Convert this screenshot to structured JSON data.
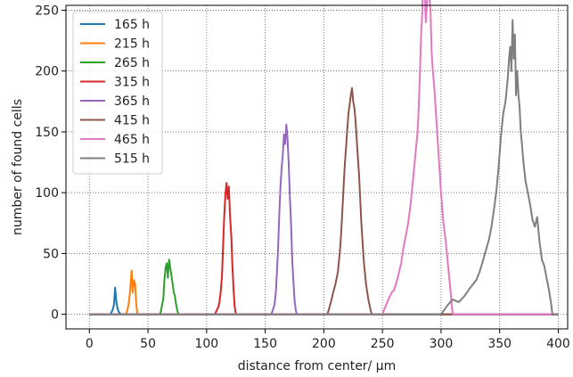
{
  "chart_data": {
    "type": "line",
    "title": "",
    "xlabel": "distance from center/ μm",
    "ylabel": "number of found cells",
    "xlim": [
      -20,
      408
    ],
    "ylim": [
      -12,
      254
    ],
    "xticks": [
      0,
      50,
      100,
      150,
      200,
      250,
      300,
      350,
      400
    ],
    "yticks": [
      0,
      50,
      100,
      150,
      200,
      250
    ],
    "grid": true,
    "legend_position": "top-left",
    "series": [
      {
        "name": "165 h",
        "color": "#1f77b4",
        "x": [
          0,
          18,
          19,
          20,
          21,
          22,
          23,
          24,
          25,
          26,
          27,
          400
        ],
        "y": [
          0,
          0,
          2,
          4,
          8,
          22,
          10,
          5,
          2,
          1,
          0,
          0
        ]
      },
      {
        "name": "215 h",
        "color": "#ff7f0e",
        "x": [
          0,
          31,
          32,
          33,
          34,
          35,
          36,
          37,
          38,
          39,
          40,
          41,
          400
        ],
        "y": [
          0,
          0,
          2,
          6,
          12,
          22,
          36,
          18,
          28,
          25,
          8,
          0,
          0
        ]
      },
      {
        "name": "265 h",
        "color": "#2ca02c",
        "x": [
          0,
          60,
          61,
          62,
          63,
          64,
          65,
          66,
          67,
          68,
          69,
          70,
          71,
          72,
          73,
          74,
          75,
          76,
          400
        ],
        "y": [
          0,
          0,
          2,
          8,
          12,
          28,
          38,
          42,
          30,
          45,
          38,
          32,
          25,
          18,
          15,
          8,
          3,
          0,
          0
        ]
      },
      {
        "name": "315 h",
        "color": "#d62728",
        "x": [
          0,
          107,
          108,
          109,
          110,
          111,
          112,
          113,
          114,
          115,
          116,
          117,
          118,
          119,
          120,
          121,
          122,
          123,
          124,
          125,
          400
        ],
        "y": [
          0,
          0,
          2,
          4,
          6,
          10,
          18,
          30,
          55,
          80,
          98,
          108,
          95,
          105,
          80,
          65,
          40,
          20,
          6,
          0,
          0
        ]
      },
      {
        "name": "365 h",
        "color": "#9467bd",
        "x": [
          0,
          155,
          156,
          158,
          159,
          160,
          161,
          162,
          163,
          164,
          165,
          166,
          167,
          168,
          169,
          170,
          171,
          172,
          173,
          174,
          175,
          176,
          177,
          400
        ],
        "y": [
          0,
          0,
          2,
          8,
          18,
          35,
          55,
          82,
          105,
          120,
          132,
          148,
          140,
          156,
          145,
          125,
          98,
          75,
          45,
          28,
          12,
          4,
          0,
          0
        ]
      },
      {
        "name": "415 h",
        "color": "#8c564b",
        "x": [
          0,
          203,
          204,
          206,
          208,
          210,
          212,
          214,
          215,
          216,
          217,
          218,
          219,
          220,
          221,
          222,
          223,
          224,
          225,
          226,
          227,
          228,
          229,
          230,
          231,
          232,
          233,
          234,
          236,
          238,
          240,
          241,
          400
        ],
        "y": [
          0,
          0,
          3,
          10,
          18,
          25,
          35,
          55,
          70,
          88,
          108,
          125,
          138,
          152,
          165,
          172,
          180,
          186,
          175,
          170,
          160,
          145,
          130,
          115,
          95,
          75,
          60,
          45,
          25,
          12,
          3,
          0,
          0
        ]
      },
      {
        "name": "465 h",
        "color": "#e377c2",
        "x": [
          0,
          250,
          252,
          255,
          258,
          260,
          263,
          266,
          268,
          270,
          272,
          274,
          276,
          278,
          280,
          281,
          282,
          283,
          284,
          285,
          286,
          287,
          288,
          289,
          290,
          291,
          292,
          293,
          294,
          295,
          296,
          298,
          300,
          302,
          304,
          306,
          308,
          309,
          310,
          400
        ],
        "y": [
          0,
          0,
          5,
          12,
          18,
          20,
          30,
          42,
          55,
          65,
          75,
          90,
          110,
          130,
          150,
          170,
          200,
          230,
          250,
          285,
          270,
          240,
          255,
          280,
          260,
          250,
          215,
          200,
          190,
          175,
          160,
          130,
          100,
          75,
          60,
          40,
          20,
          8,
          0,
          0
        ]
      },
      {
        "name": "515 h",
        "color": "#7f7f7f",
        "x": [
          0,
          300,
          303,
          306,
          310,
          315,
          320,
          325,
          330,
          333,
          336,
          339,
          341,
          343,
          345,
          347,
          349,
          351,
          353,
          355,
          357,
          358,
          359,
          360,
          361,
          362,
          363,
          364,
          365,
          366,
          367,
          368,
          369,
          370,
          372,
          374,
          376,
          378,
          380,
          382,
          384,
          386,
          388,
          390,
          392,
          394,
          395,
          400
        ],
        "y": [
          0,
          0,
          4,
          8,
          12,
          10,
          15,
          22,
          28,
          35,
          45,
          55,
          62,
          72,
          85,
          100,
          120,
          145,
          165,
          175,
          195,
          210,
          220,
          200,
          242,
          210,
          230,
          180,
          200,
          180,
          170,
          150,
          140,
          128,
          110,
          100,
          90,
          78,
          72,
          80,
          60,
          45,
          40,
          30,
          20,
          8,
          0,
          0
        ]
      }
    ]
  }
}
